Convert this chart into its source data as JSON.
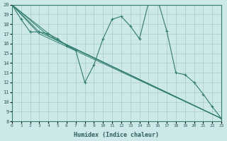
{
  "xlabel": "Humidex (Indice chaleur)",
  "xlim": [
    0,
    23
  ],
  "ylim": [
    8,
    20
  ],
  "yticks": [
    8,
    9,
    10,
    11,
    12,
    13,
    14,
    15,
    16,
    17,
    18,
    19,
    20
  ],
  "xticks": [
    0,
    1,
    2,
    3,
    4,
    5,
    6,
    7,
    8,
    9,
    10,
    11,
    12,
    13,
    14,
    15,
    16,
    17,
    18,
    19,
    20,
    21,
    22,
    23
  ],
  "bg_color": "#cce8e8",
  "line_color": "#2e7d6e",
  "grid_color": "#aacccc",
  "main_x": [
    0,
    1,
    2,
    3,
    4,
    5,
    6,
    7,
    8,
    9,
    10,
    11,
    12,
    13,
    14,
    15,
    16,
    17,
    18,
    19,
    20,
    21,
    22,
    23
  ],
  "main_y": [
    20,
    18.5,
    17.2,
    17.2,
    17.0,
    16.5,
    15.8,
    15.3,
    12.0,
    13.8,
    16.5,
    18.5,
    18.8,
    17.8,
    16.5,
    20.2,
    20.5,
    17.3,
    13.0,
    12.8,
    12.0,
    10.8,
    9.5,
    8.3
  ],
  "straight_lines": [
    {
      "x": [
        0,
        3,
        23
      ],
      "y": [
        20,
        17.2,
        8.3
      ]
    },
    {
      "x": [
        0,
        3,
        23
      ],
      "y": [
        20,
        17.0,
        8.3
      ]
    },
    {
      "x": [
        0,
        4,
        23
      ],
      "y": [
        20,
        16.8,
        8.3
      ]
    },
    {
      "x": [
        0,
        5,
        23
      ],
      "y": [
        20,
        16.3,
        8.3
      ]
    }
  ]
}
